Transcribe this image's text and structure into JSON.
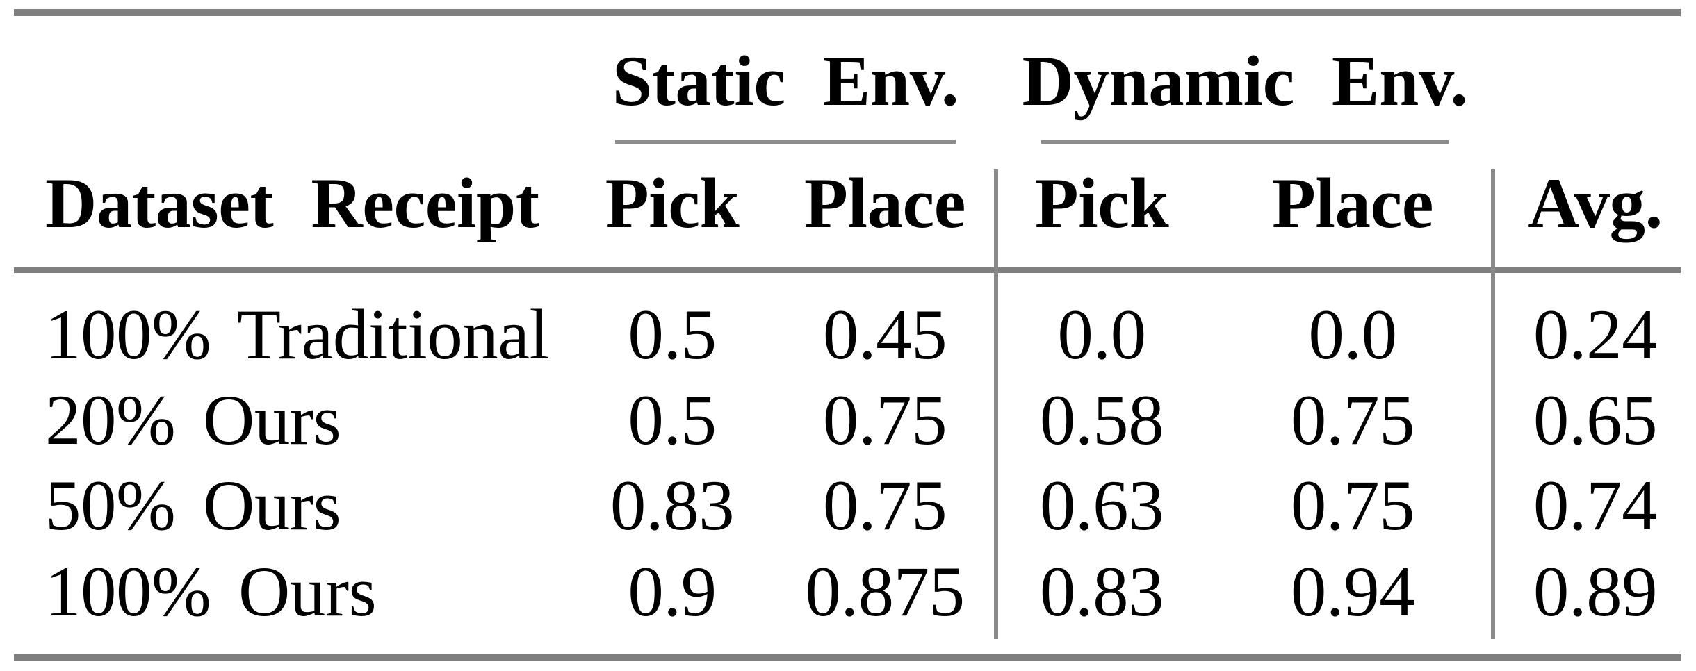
{
  "chart_data": {
    "type": "table",
    "title": "",
    "column_groups": [
      {
        "label": "Static Env.",
        "columns": [
          "Pick",
          "Place"
        ]
      },
      {
        "label": "Dynamic Env.",
        "columns": [
          "Pick",
          "Place"
        ]
      }
    ],
    "row_header_label": "Dataset Receipt",
    "columns": [
      "Pick",
      "Place",
      "Pick",
      "Place",
      "Avg."
    ],
    "rows": [
      {
        "label": "100% Traditional",
        "values": [
          "0.5",
          "0.45",
          "0.0",
          "0.0",
          "0.24"
        ]
      },
      {
        "label": "20% Ours",
        "values": [
          "0.5",
          "0.75",
          "0.58",
          "0.75",
          "0.65"
        ]
      },
      {
        "label": "50% Ours",
        "values": [
          "0.83",
          "0.75",
          "0.63",
          "0.75",
          "0.74"
        ]
      },
      {
        "label": "100% Ours",
        "values": [
          "0.9",
          "0.875",
          "0.83",
          "0.94",
          "0.89"
        ]
      }
    ]
  },
  "colors": {
    "text": "#000000",
    "rule_heavy": "#7f7f7f",
    "rule_light": "#8c8c8c",
    "background": "#ffffff"
  }
}
